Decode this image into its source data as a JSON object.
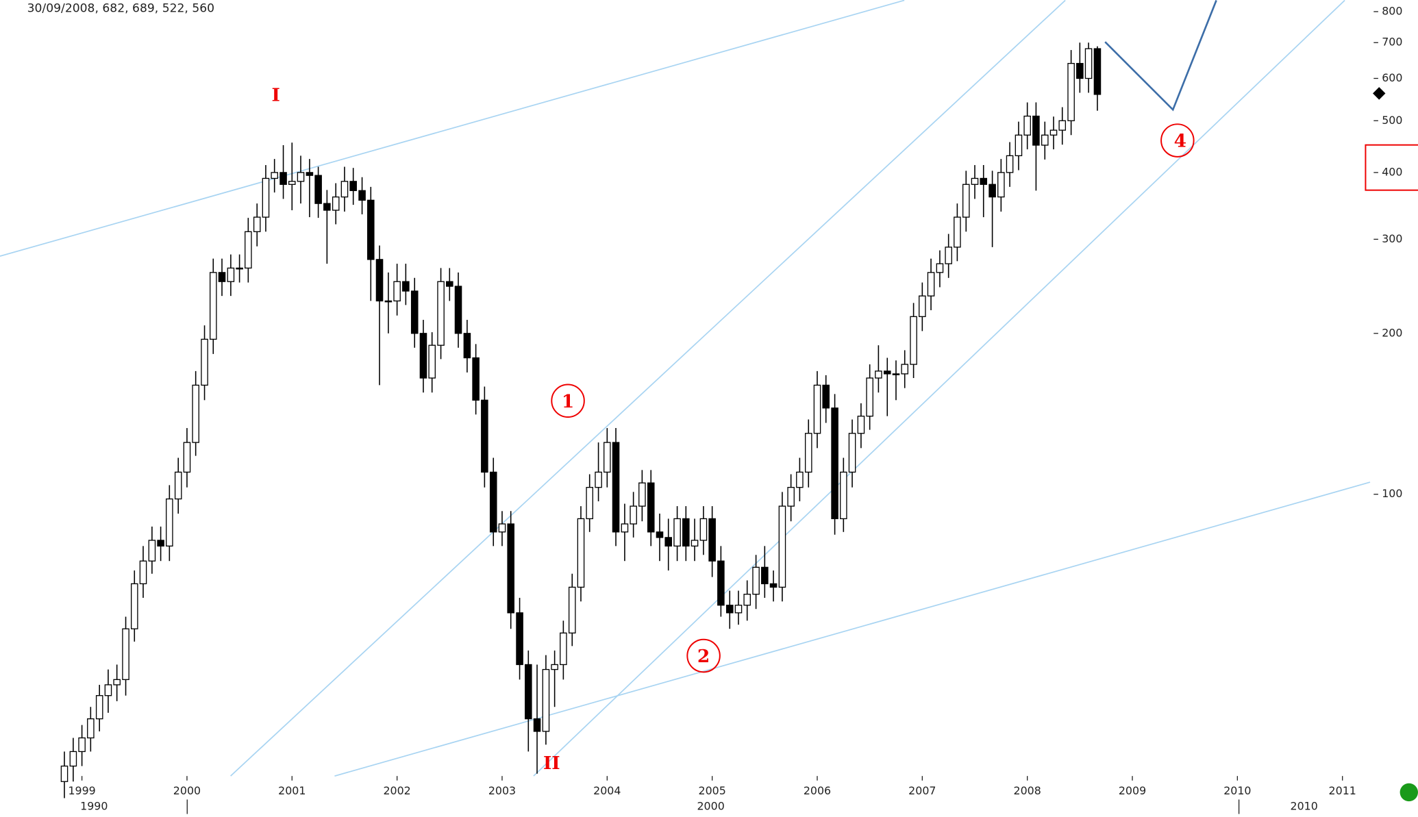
{
  "chart_data": {
    "type": "candlestick",
    "header": "30/09/2008, 682, 689, 522, 560",
    "x": [
      1998.833,
      1998.917,
      1999.0,
      1999.083,
      1999.167,
      1999.25,
      1999.333,
      1999.417,
      1999.5,
      1999.583,
      1999.667,
      1999.75,
      1999.833,
      1999.917,
      2000.0,
      2000.083,
      2000.167,
      2000.25,
      2000.333,
      2000.417,
      2000.5,
      2000.583,
      2000.667,
      2000.75,
      2000.833,
      2000.917,
      2001.0,
      2001.083,
      2001.167,
      2001.25,
      2001.333,
      2001.417,
      2001.5,
      2001.583,
      2001.667,
      2001.75,
      2001.833,
      2001.917,
      2002.0,
      2002.083,
      2002.167,
      2002.25,
      2002.333,
      2002.417,
      2002.5,
      2002.583,
      2002.667,
      2002.75,
      2002.833,
      2002.917,
      2003.0,
      2003.083,
      2003.167,
      2003.25,
      2003.333,
      2003.417,
      2003.5,
      2003.583,
      2003.667,
      2003.75,
      2003.833,
      2003.917,
      2004.0,
      2004.083,
      2004.167,
      2004.25,
      2004.333,
      2004.417,
      2004.5,
      2004.583,
      2004.667,
      2004.75,
      2004.833,
      2004.917,
      2005.0,
      2005.083,
      2005.167,
      2005.25,
      2005.333,
      2005.417,
      2005.5,
      2005.583,
      2005.667,
      2005.75,
      2005.833,
      2005.917,
      2006.0,
      2006.083,
      2006.167,
      2006.25,
      2006.333,
      2006.417,
      2006.5,
      2006.583,
      2006.667,
      2006.75,
      2006.833,
      2006.917,
      2007.0,
      2007.083,
      2007.167,
      2007.25,
      2007.333,
      2007.417,
      2007.5,
      2007.583,
      2007.667,
      2007.75,
      2007.833,
      2007.917,
      2008.0,
      2008.083,
      2008.167,
      2008.25,
      2008.333,
      2008.417,
      2008.5,
      2008.583,
      2008.667
    ],
    "open": [
      29,
      31,
      33,
      35,
      38,
      42,
      44,
      45,
      56,
      68,
      75,
      82,
      80,
      98,
      110,
      125,
      160,
      195,
      260,
      250,
      265,
      265,
      310,
      330,
      390,
      400,
      380,
      385,
      400,
      395,
      350,
      340,
      360,
      385,
      370,
      355,
      275,
      230,
      230,
      250,
      240,
      200,
      165,
      190,
      250,
      245,
      200,
      180,
      150,
      110,
      85,
      88,
      60,
      48,
      38,
      36,
      47,
      48,
      55,
      67,
      90,
      103,
      110,
      125,
      85,
      88,
      95,
      105,
      85,
      83,
      80,
      90,
      80,
      82,
      90,
      75,
      62,
      60,
      62,
      65,
      73,
      68,
      67,
      95,
      103,
      110,
      130,
      160,
      145,
      90,
      110,
      130,
      140,
      165,
      170,
      168,
      168,
      175,
      215,
      235,
      260,
      270,
      290,
      330,
      380,
      390,
      380,
      360,
      400,
      430,
      470,
      510,
      450,
      470,
      480,
      500,
      640,
      600,
      682
    ],
    "high": [
      33,
      35,
      37,
      40,
      44,
      47,
      48,
      59,
      72,
      80,
      87,
      87,
      104,
      117,
      133,
      170,
      207,
      276,
      276,
      281,
      281,
      329,
      350,
      413,
      424,
      450,
      455,
      430,
      424,
      410,
      371,
      382,
      410,
      408,
      392,
      376,
      292,
      260,
      270,
      270,
      254,
      212,
      201,
      265,
      265,
      260,
      212,
      191,
      159,
      117,
      93,
      93,
      64,
      51,
      48,
      50,
      51,
      58,
      71,
      95,
      109,
      125,
      133,
      133,
      96,
      101,
      111,
      111,
      92,
      90,
      95,
      95,
      90,
      95,
      95,
      80,
      66,
      66,
      69,
      77,
      80,
      72,
      101,
      109,
      117,
      138,
      170,
      167,
      154,
      117,
      138,
      148,
      175,
      190,
      180,
      178,
      186,
      228,
      249,
      276,
      286,
      307,
      350,
      403,
      413,
      413,
      403,
      424,
      456,
      498,
      541,
      541,
      498,
      509,
      530,
      678,
      700,
      700,
      689
    ],
    "low": [
      27,
      29,
      31,
      33,
      36,
      39,
      41,
      42,
      53,
      64,
      71,
      75,
      75,
      92,
      103,
      118,
      150,
      183,
      235,
      235,
      249,
      249,
      291,
      310,
      367,
      357,
      340,
      350,
      330,
      329,
      270,
      320,
      338,
      348,
      334,
      230,
      160,
      200,
      216,
      226,
      188,
      155,
      155,
      179,
      230,
      188,
      169,
      141,
      103,
      80,
      80,
      56,
      45,
      33,
      30,
      34,
      40,
      45,
      52,
      63,
      85,
      97,
      103,
      80,
      75,
      83,
      89,
      80,
      75,
      72,
      75,
      75,
      75,
      77,
      70,
      59,
      56,
      57,
      58,
      61,
      64,
      63,
      63,
      89,
      97,
      103,
      122,
      136,
      84,
      85,
      103,
      122,
      132,
      155,
      140,
      150,
      158,
      165,
      202,
      221,
      244,
      254,
      273,
      310,
      357,
      330,
      290,
      338,
      376,
      404,
      442,
      370,
      423,
      442,
      451,
      470,
      564,
      564,
      522
    ],
    "close": [
      31,
      33,
      35,
      38,
      42,
      44,
      45,
      56,
      68,
      75,
      82,
      80,
      98,
      110,
      125,
      160,
      195,
      260,
      250,
      265,
      265,
      310,
      330,
      390,
      400,
      380,
      385,
      400,
      395,
      350,
      340,
      360,
      385,
      370,
      355,
      275,
      230,
      230,
      250,
      240,
      200,
      165,
      190,
      250,
      245,
      200,
      180,
      150,
      110,
      85,
      88,
      60,
      48,
      38,
      36,
      47,
      48,
      55,
      67,
      90,
      103,
      110,
      125,
      85,
      88,
      95,
      105,
      85,
      83,
      80,
      90,
      80,
      82,
      90,
      75,
      62,
      60,
      62,
      65,
      73,
      68,
      67,
      95,
      103,
      110,
      130,
      160,
      145,
      90,
      110,
      130,
      140,
      165,
      170,
      168,
      168,
      175,
      215,
      235,
      260,
      270,
      290,
      330,
      380,
      390,
      380,
      360,
      400,
      430,
      470,
      510,
      450,
      470,
      480,
      500,
      640,
      600,
      682,
      560
    ],
    "up_color": "#ffffff",
    "down_color": "#000000",
    "wick_color": "#000000",
    "xlim": [
      1998.22,
      2011.22
    ],
    "xticks": [
      1999,
      2000,
      2001,
      2002,
      2003,
      2004,
      2005,
      2006,
      2007,
      2008,
      2009,
      2010,
      2011
    ],
    "ylim": [
      29.7,
      840
    ],
    "log_scale": true,
    "yticks": [
      100,
      200,
      300,
      400,
      500,
      600,
      700,
      800
    ],
    "era_labels": [
      "1990",
      "2000",
      "2010"
    ],
    "annotations": [
      "I",
      "II",
      "1",
      "2",
      "4"
    ]
  }
}
